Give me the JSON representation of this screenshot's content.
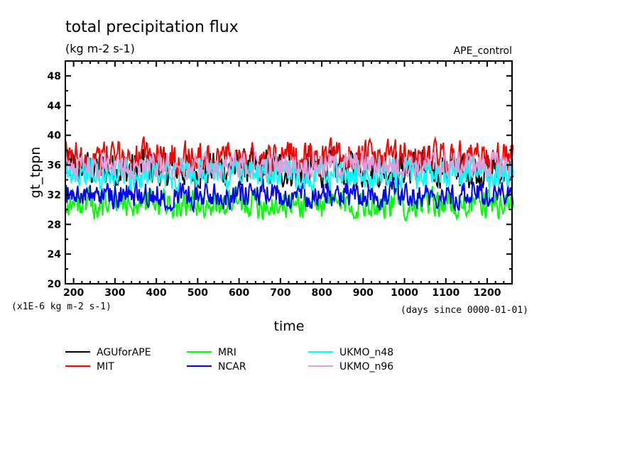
{
  "chart_data": {
    "type": "line",
    "title": "total precipitation flux",
    "subtitle": "(kg m-2 s-1)",
    "annotation_right": "APE_control",
    "xlabel": "time",
    "xunits": "(days since 0000-01-01)",
    "ylabel": "gt_tppn",
    "yunits": "(x1E-6 kg m-2 s-1)",
    "xlim": [
      180,
      1260
    ],
    "ylim": [
      20,
      50
    ],
    "xticks": [
      200,
      300,
      400,
      500,
      600,
      700,
      800,
      900,
      1000,
      1100,
      1200
    ],
    "xtick_labels": [
      "200",
      "300",
      "400",
      "500",
      "600",
      "700",
      "800",
      "900",
      "1000",
      "1100",
      "1200"
    ],
    "yticks": [
      20,
      24,
      28,
      32,
      36,
      40,
      44,
      48
    ],
    "ytick_labels": [
      "20",
      "24",
      "28",
      "32",
      "36",
      "40",
      "44",
      "48"
    ],
    "grid": false,
    "legend_placement": "bottom",
    "x_range_data": [
      180,
      1263
    ],
    "series": [
      {
        "name": "AGUforAPE",
        "color": "#000000",
        "mean": 35.5,
        "min": 31.5,
        "max": 40.8
      },
      {
        "name": "MIT",
        "color": "#ff0000",
        "mean": 37.0,
        "min": 33.0,
        "max": 41.2
      },
      {
        "name": "MRI",
        "color": "#00ff00",
        "mean": 30.8,
        "min": 27.4,
        "max": 34.5
      },
      {
        "name": "NCAR",
        "color": "#0000ff",
        "mean": 32.0,
        "min": 29.0,
        "max": 35.5
      },
      {
        "name": "UKMO_n48",
        "color": "#00ffff",
        "mean": 34.8,
        "min": 31.5,
        "max": 39.2
      },
      {
        "name": "UKMO_n96",
        "color": "#dda0dd",
        "mean": 36.0,
        "min": 33.0,
        "max": 39.5
      }
    ]
  }
}
